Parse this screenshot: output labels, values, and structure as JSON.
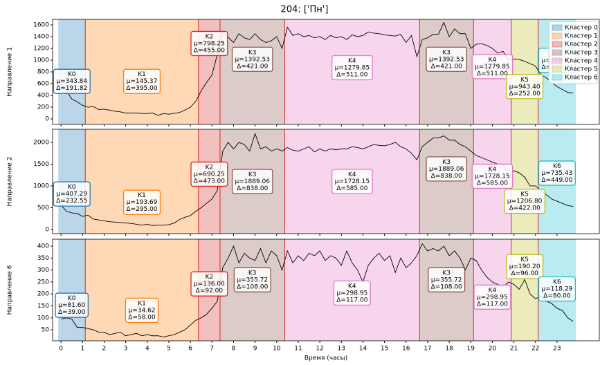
{
  "title": "204: ['Пн']",
  "xlabel": "Время (часы)",
  "xlim": [
    -0.39,
    24.96
  ],
  "xticks": [
    0,
    1,
    2,
    3,
    4,
    5,
    6,
    7,
    8,
    9,
    10,
    11,
    12,
    13,
    14,
    15,
    16,
    17,
    18,
    19,
    20,
    21,
    22,
    23
  ],
  "x": [
    0,
    0.25,
    0.5,
    0.75,
    1,
    1.25,
    1.5,
    1.75,
    2,
    2.25,
    2.5,
    2.75,
    3,
    3.25,
    3.5,
    3.75,
    4,
    4.25,
    4.5,
    4.75,
    5,
    5.25,
    5.5,
    5.75,
    6,
    6.25,
    6.5,
    6.75,
    7,
    7.25,
    7.5,
    7.75,
    8,
    8.25,
    8.5,
    8.75,
    9,
    9.25,
    9.5,
    9.75,
    10,
    10.25,
    10.5,
    10.75,
    11,
    11.25,
    11.5,
    11.75,
    12,
    12.25,
    12.5,
    12.75,
    13,
    13.25,
    13.5,
    13.75,
    14,
    14.25,
    14.5,
    14.75,
    15,
    15.25,
    15.5,
    15.75,
    16,
    16.25,
    16.5,
    16.75,
    17,
    17.25,
    17.5,
    17.75,
    18,
    18.25,
    18.5,
    18.75,
    19,
    19.25,
    19.5,
    19.75,
    20,
    20.25,
    20.5,
    20.75,
    21,
    21.25,
    21.5,
    21.75,
    22,
    22.25,
    22.5,
    22.75,
    23,
    23.25,
    23.5,
    23.75
  ],
  "legend": {
    "position": "upper right",
    "items": [
      {
        "name": "Кластер 0",
        "color": "#1f77b4"
      },
      {
        "name": "Кластер 1",
        "color": "#ff7f0e"
      },
      {
        "name": "Кластер 2",
        "color": "#d62728"
      },
      {
        "name": "Кластер 3",
        "color": "#8c564b"
      },
      {
        "name": "Кластер 4",
        "color": "#e377c2"
      },
      {
        "name": "Кластер 5",
        "color": "#bcbd22"
      },
      {
        "name": "Кластер 6",
        "color": "#17becf"
      }
    ]
  },
  "segments": [
    {
      "cluster": 0,
      "start": -0.125,
      "end": 1.125
    },
    {
      "cluster": 1,
      "start": 1.125,
      "end": 6.375
    },
    {
      "cluster": 2,
      "start": 6.375,
      "end": 7.375
    },
    {
      "cluster": 3,
      "start": 7.375,
      "end": 10.375
    },
    {
      "cluster": 4,
      "start": 10.375,
      "end": 16.625
    },
    {
      "cluster": 3,
      "start": 16.625,
      "end": 19.125
    },
    {
      "cluster": 4,
      "start": 19.125,
      "end": 20.875
    },
    {
      "cluster": 5,
      "start": 20.875,
      "end": 22.125
    },
    {
      "cluster": 6,
      "start": 22.125,
      "end": 23.875
    }
  ],
  "boundary_color": "#d62728",
  "chart_data": [
    {
      "type": "line",
      "ylabel": "Направление 1",
      "color": "#000000",
      "ylim": [
        -94,
        1694
      ],
      "yticks": [
        0,
        200,
        400,
        600,
        800,
        1000,
        1200,
        1400,
        1600
      ],
      "values": [
        590,
        480,
        340,
        290,
        230,
        200,
        210,
        160,
        165,
        150,
        130,
        120,
        100,
        100,
        100,
        95,
        90,
        100,
        60,
        90,
        80,
        95,
        110,
        150,
        200,
        300,
        480,
        620,
        750,
        1100,
        1480,
        1390,
        1300,
        1450,
        1380,
        1350,
        1450,
        1350,
        1300,
        1330,
        1400,
        1200,
        1560,
        1420,
        1450,
        1400,
        1420,
        1380,
        1400,
        1350,
        1420,
        1380,
        1400,
        1350,
        1430,
        1400,
        1420,
        1480,
        1460,
        1450,
        1430,
        1420,
        1410,
        1440,
        1300,
        1420,
        1060,
        1350,
        1380,
        1440,
        1440,
        1640,
        1400,
        1530,
        1450,
        1450,
        1200,
        1270,
        1280,
        1250,
        1200,
        1120,
        1150,
        1000,
        1020,
        1010,
        980,
        940,
        900,
        750,
        700,
        620,
        550,
        500,
        450,
        440
      ],
      "annotations": [
        {
          "lines": [
            "K0",
            "μ=343.84",
            "Δ=191.82"
          ]
        },
        {
          "lines": [
            "K1",
            "μ=145.37",
            "Δ=395.00"
          ]
        },
        {
          "lines": [
            "K2",
            "μ=798.25",
            "Δ=455.00"
          ]
        },
        {
          "lines": [
            "K3",
            "μ=1392.53",
            "Δ=421.00"
          ]
        },
        {
          "lines": [
            "K4",
            "μ=1279.85",
            "Δ=511.00"
          ]
        },
        {
          "lines": [
            "K3",
            "μ=1392.53",
            "Δ=421.00"
          ]
        },
        {
          "lines": [
            "K4",
            "μ=1279.85",
            "Δ=511.00"
          ]
        },
        {
          "lines": [
            "K5",
            "μ=943.40",
            "Δ=252.00"
          ]
        },
        {
          "lines": [
            "K6",
            "μ=569.13",
            "Δ=237.00"
          ]
        }
      ]
    },
    {
      "type": "line",
      "ylabel": "Направление 2",
      "color": "#000000",
      "ylim": [
        -95,
        2300
      ],
      "yticks": [
        0,
        500,
        1000,
        1500,
        2000
      ],
      "values": [
        560,
        420,
        380,
        370,
        300,
        330,
        240,
        220,
        200,
        180,
        170,
        160,
        150,
        140,
        120,
        100,
        120,
        90,
        100,
        100,
        110,
        150,
        230,
        280,
        320,
        420,
        500,
        600,
        700,
        900,
        1800,
        2000,
        1850,
        2000,
        1950,
        1800,
        2200,
        1850,
        1900,
        1800,
        1850,
        1800,
        1880,
        1820,
        1800,
        1850,
        1900,
        1780,
        1850,
        1800,
        1850,
        1830,
        1850,
        1850,
        1900,
        1880,
        1850,
        1900,
        1950,
        1930,
        1920,
        1950,
        2000,
        1900,
        1850,
        1750,
        1600,
        1900,
        2000,
        2100,
        2100,
        2150,
        2050,
        2050,
        1950,
        1900,
        1800,
        1700,
        1650,
        1600,
        1550,
        1500,
        1500,
        1200,
        1350,
        1300,
        1200,
        1000,
        1000,
        900,
        800,
        700,
        650,
        600,
        550,
        530
      ],
      "annotations": [
        {
          "lines": [
            "K0",
            "μ=407.29",
            "Δ=232.55"
          ]
        },
        {
          "lines": [
            "K1",
            "μ=193.69",
            "Δ=295.00"
          ]
        },
        {
          "lines": [
            "K2",
            "μ=690.25",
            "Δ=473.00"
          ]
        },
        {
          "lines": [
            "K3",
            "μ=1889.06",
            "Δ=838.00"
          ]
        },
        {
          "lines": [
            "K4",
            "μ=1728.15",
            "Δ=585.00"
          ]
        },
        {
          "lines": [
            "K3",
            "μ=1889.06",
            "Δ=838.00"
          ]
        },
        {
          "lines": [
            "K4",
            "μ=1728.15",
            "Δ=585.00"
          ]
        },
        {
          "lines": [
            "K5",
            "μ=1206.80",
            "Δ=422.00"
          ]
        },
        {
          "lines": [
            "K6",
            "μ=735.43",
            "Δ=449.00"
          ]
        }
      ]
    },
    {
      "type": "line",
      "ylabel": "Направление 6",
      "color": "#000000",
      "ylim": [
        4,
        429
      ],
      "yticks": [
        50,
        100,
        150,
        200,
        250,
        300,
        350,
        400
      ],
      "values": [
        95,
        100,
        95,
        60,
        60,
        55,
        50,
        40,
        40,
        30,
        35,
        40,
        25,
        30,
        35,
        25,
        30,
        25,
        25,
        20,
        25,
        30,
        40,
        50,
        70,
        90,
        100,
        115,
        140,
        170,
        310,
        350,
        400,
        330,
        370,
        350,
        340,
        390,
        330,
        380,
        360,
        300,
        380,
        330,
        360,
        340,
        370,
        360,
        380,
        340,
        360,
        350,
        320,
        380,
        330,
        300,
        250,
        320,
        350,
        370,
        340,
        360,
        290,
        350,
        310,
        330,
        360,
        410,
        380,
        390,
        380,
        400,
        360,
        380,
        350,
        300,
        350,
        340,
        300,
        270,
        250,
        240,
        230,
        250,
        240,
        220,
        260,
        200,
        180,
        190,
        170,
        160,
        140,
        130,
        100,
        85
      ],
      "annotations": [
        {
          "lines": [
            "K0",
            "μ=81.60",
            "Δ=39.00"
          ]
        },
        {
          "lines": [
            "K1",
            "μ=34.62",
            "Δ=58.00"
          ]
        },
        {
          "lines": [
            "K2",
            "μ=136.00",
            "Δ=92.00"
          ]
        },
        {
          "lines": [
            "K3",
            "μ=355.72",
            "Δ=108.00"
          ]
        },
        {
          "lines": [
            "K4",
            "μ=298.95",
            "Δ=117.00"
          ]
        },
        {
          "lines": [
            "K3",
            "μ=355.72",
            "Δ=108.00"
          ]
        },
        {
          "lines": [
            "K4",
            "μ=298.95",
            "Δ=117.00"
          ]
        },
        {
          "lines": [
            "K5",
            "μ=190.20",
            "Δ=96.00"
          ]
        },
        {
          "lines": [
            "K6",
            "μ=118.29",
            "Δ=80.00"
          ]
        }
      ]
    }
  ]
}
